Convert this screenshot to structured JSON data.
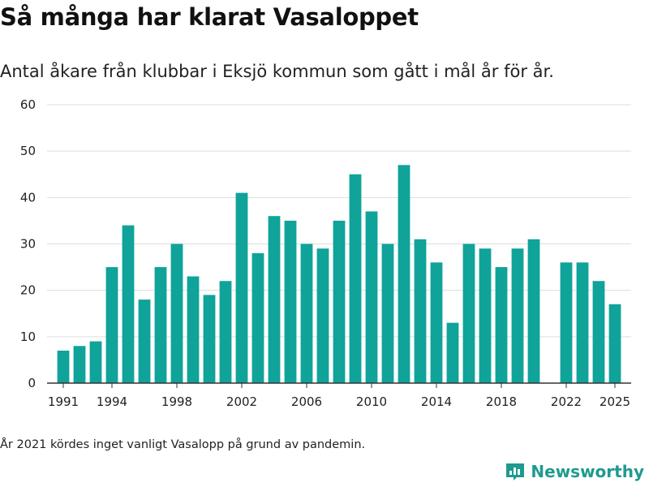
{
  "title": "Så många har klarat Vasaloppet",
  "subtitle": "Antal åkare från klubbar i Eksjö kommun som gått i mål år för år.",
  "footnote": "År 2021 kördes inget vanligt Vasalopp på grund av pandemin.",
  "brand": {
    "name": "Newsworthy",
    "icon": "bar-chart-logo-icon",
    "color": "#1f9a8f"
  },
  "colors": {
    "bar": "#0fa39a",
    "grid": "#dddddd",
    "axis": "#333333"
  },
  "chart_data": {
    "type": "bar",
    "title": "Så många har klarat Vasaloppet",
    "subtitle": "Antal åkare från klubbar i Eksjö kommun som gått i mål år för år.",
    "xlabel": "",
    "ylabel": "",
    "ylim": [
      0,
      60
    ],
    "yticks": [
      0,
      10,
      20,
      30,
      40,
      50,
      60
    ],
    "xticks": [
      1991,
      1994,
      1998,
      2002,
      2006,
      2010,
      2014,
      2018,
      2022,
      2025
    ],
    "xlim": [
      1990,
      2026
    ],
    "grid": true,
    "categories": [
      1991,
      1992,
      1993,
      1994,
      1995,
      1996,
      1997,
      1998,
      1999,
      2000,
      2001,
      2002,
      2003,
      2004,
      2005,
      2006,
      2007,
      2008,
      2009,
      2010,
      2011,
      2012,
      2013,
      2014,
      2015,
      2016,
      2017,
      2018,
      2019,
      2020,
      2021,
      2022,
      2023,
      2024,
      2025
    ],
    "values": [
      7,
      8,
      9,
      25,
      34,
      18,
      25,
      30,
      23,
      19,
      22,
      41,
      28,
      36,
      35,
      30,
      29,
      35,
      45,
      37,
      30,
      47,
      31,
      26,
      13,
      30,
      29,
      25,
      29,
      31,
      null,
      26,
      26,
      22,
      17
    ]
  }
}
